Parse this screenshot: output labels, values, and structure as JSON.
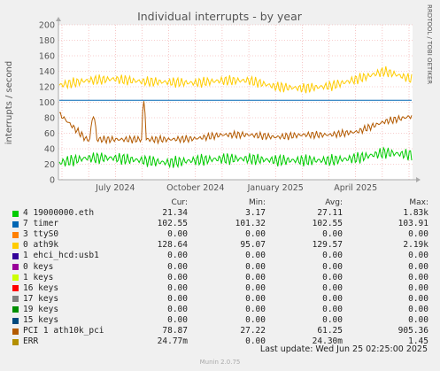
{
  "title": "Individual interrupts - by year",
  "watermark": "RRDTOOL / TOBI OETIKER",
  "ylabel": "interrupts / second",
  "legend_header": {
    "cur": "Cur:",
    "min": "Min:",
    "avg": "Avg:",
    "max": "Max:"
  },
  "legend": [
    {
      "name": "4 19000000.eth",
      "color": "#00cc00",
      "cur": "21.34",
      "min": "3.17",
      "avg": "27.11",
      "max": "1.83k"
    },
    {
      "name": "7 timer",
      "color": "#0066b3",
      "cur": "102.55",
      "min": "101.32",
      "avg": "102.55",
      "max": "103.91"
    },
    {
      "name": "3 ttyS0",
      "color": "#ff8000",
      "cur": "0.00",
      "min": "0.00",
      "avg": "0.00",
      "max": "0.00"
    },
    {
      "name": "0 ath9k",
      "color": "#ffcc00",
      "cur": "128.64",
      "min": "95.07",
      "avg": "129.57",
      "max": "2.19k"
    },
    {
      "name": "1 ehci_hcd:usb1",
      "color": "#330099",
      "cur": "0.00",
      "min": "0.00",
      "avg": "0.00",
      "max": "0.00"
    },
    {
      "name": "0 keys",
      "color": "#990099",
      "cur": "0.00",
      "min": "0.00",
      "avg": "0.00",
      "max": "0.00"
    },
    {
      "name": "1 keys",
      "color": "#ccff00",
      "cur": "0.00",
      "min": "0.00",
      "avg": "0.00",
      "max": "0.00"
    },
    {
      "name": "16 keys",
      "color": "#ff0000",
      "cur": "0.00",
      "min": "0.00",
      "avg": "0.00",
      "max": "0.00"
    },
    {
      "name": "17 keys",
      "color": "#808080",
      "cur": "0.00",
      "min": "0.00",
      "avg": "0.00",
      "max": "0.00"
    },
    {
      "name": "19 keys",
      "color": "#008f00",
      "cur": "0.00",
      "min": "0.00",
      "avg": "0.00",
      "max": "0.00"
    },
    {
      "name": "15 keys",
      "color": "#00487d",
      "cur": "0.00",
      "min": "0.00",
      "avg": "0.00",
      "max": "0.00"
    },
    {
      "name": "PCI 1 ath10k_pci",
      "color": "#b35a00",
      "cur": "78.87",
      "min": "27.22",
      "avg": "61.25",
      "max": "905.36"
    },
    {
      "name": "ERR",
      "color": "#b38f00",
      "cur": "24.77m",
      "min": "0.00",
      "avg": "24.30m",
      "max": "1.45"
    }
  ],
  "last_update": "Last update: Wed Jun 25 02:25:00 2025",
  "footer": "Munin 2.0.75",
  "chart_data": {
    "type": "line",
    "title": "Individual interrupts - by year",
    "ylabel": "interrupts / second",
    "ylim": [
      0,
      200
    ],
    "yticks": [
      0,
      20,
      40,
      60,
      80,
      100,
      120,
      140,
      160,
      180,
      200
    ],
    "xticks": [
      "July 2024",
      "October 2024",
      "January 2025",
      "April 2025"
    ],
    "x": [
      "2024-05",
      "2024-06",
      "2024-07",
      "2024-08",
      "2024-09",
      "2024-10",
      "2024-11",
      "2024-12",
      "2025-01",
      "2025-02",
      "2025-03",
      "2025-04",
      "2025-05",
      "2025-06"
    ],
    "grid": true,
    "series": [
      {
        "name": "0 ath9k",
        "color": "#ffcc00",
        "values": [
          122,
          128,
          130,
          127,
          126,
          125,
          128,
          128,
          120,
          118,
          121,
          130,
          140,
          130
        ]
      },
      {
        "name": "7 timer",
        "color": "#0066b3",
        "values": [
          102.5,
          102.5,
          102.5,
          102.5,
          102.5,
          102.5,
          102.5,
          102.5,
          102.5,
          102.5,
          102.5,
          102.5,
          102.5,
          102.5
        ]
      },
      {
        "name": "PCI 1 ath10k_pci",
        "color": "#b35a00",
        "values": [
          85,
          52,
          52,
          52,
          52,
          53,
          58,
          58,
          55,
          58,
          58,
          62,
          75,
          82
        ]
      },
      {
        "name": "4 19000000.eth",
        "color": "#00cc00",
        "values": [
          22,
          28,
          28,
          25,
          22,
          25,
          27,
          27,
          25,
          25,
          25,
          28,
          35,
          32
        ]
      }
    ]
  }
}
